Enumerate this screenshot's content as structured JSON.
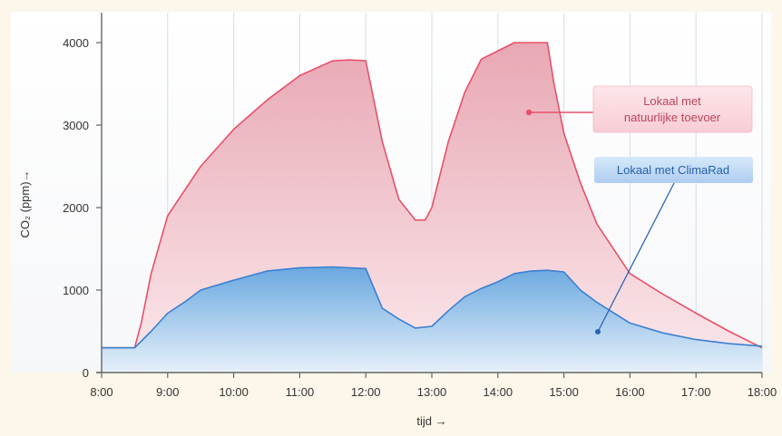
{
  "chart_data": {
    "type": "area",
    "title": "",
    "xlabel": "tijd →",
    "ylabel": "CO₂ (ppm)→",
    "xlim": [
      8,
      18
    ],
    "ylim": [
      0,
      4000
    ],
    "x_ticks": [
      {
        "value": 8,
        "label": "8:00"
      },
      {
        "value": 9,
        "label": "9:00"
      },
      {
        "value": 10,
        "label": "10:00"
      },
      {
        "value": 11,
        "label": "11:00"
      },
      {
        "value": 12,
        "label": "12:00"
      },
      {
        "value": 13,
        "label": "13:00"
      },
      {
        "value": 14,
        "label": "14:00"
      },
      {
        "value": 15,
        "label": "15:00"
      },
      {
        "value": 16,
        "label": "16:00"
      },
      {
        "value": 17,
        "label": "17:00"
      },
      {
        "value": 18,
        "label": "18:00"
      }
    ],
    "y_ticks": [
      {
        "value": 0,
        "label": "0"
      },
      {
        "value": 1000,
        "label": "1000"
      },
      {
        "value": 2000,
        "label": "2000"
      },
      {
        "value": 3000,
        "label": "3000"
      },
      {
        "value": 4000,
        "label": "4000"
      }
    ],
    "grid": "vertical",
    "series": [
      {
        "name": "Lokaal met natuurlijke toevoer",
        "color": "#e8506a",
        "fill_top": "#e8a8b4",
        "fill_bottom": "#fbe9ec",
        "x": [
          8,
          8.5,
          8.6,
          8.75,
          9,
          9.5,
          10,
          10.5,
          11,
          11.5,
          11.75,
          12,
          12.25,
          12.5,
          12.75,
          12.9,
          13,
          13.25,
          13.5,
          13.75,
          14,
          14.25,
          14.5,
          14.75,
          14.85,
          15,
          15.25,
          15.5,
          16,
          16.5,
          17,
          17.5,
          18
        ],
        "y": [
          300,
          300,
          600,
          1200,
          1900,
          2500,
          2950,
          3300,
          3600,
          3780,
          3790,
          3780,
          2800,
          2100,
          1850,
          1850,
          2000,
          2800,
          3400,
          3800,
          3900,
          4000,
          4000,
          4000,
          3500,
          2900,
          2300,
          1800,
          1200,
          950,
          720,
          500,
          300
        ]
      },
      {
        "name": "Lokaal met ClimaRad",
        "color": "#3a80d0",
        "fill_top": "#6aa8e0",
        "fill_bottom": "#e6f0fa",
        "x": [
          8,
          8.5,
          8.75,
          9,
          9.25,
          9.5,
          10,
          10.5,
          11,
          11.5,
          11.75,
          12,
          12.25,
          12.5,
          12.75,
          13,
          13.25,
          13.5,
          13.75,
          14,
          14.25,
          14.5,
          14.75,
          15,
          15.25,
          15.5,
          16,
          16.5,
          17,
          17.5,
          18
        ],
        "y": [
          300,
          300,
          500,
          720,
          850,
          1000,
          1120,
          1230,
          1270,
          1280,
          1270,
          1260,
          780,
          650,
          540,
          560,
          750,
          920,
          1020,
          1100,
          1200,
          1230,
          1240,
          1220,
          1000,
          850,
          600,
          480,
          400,
          350,
          320
        ]
      }
    ],
    "callouts": [
      {
        "series": 0,
        "lines": [
          "Lokaal met",
          "natuurlijke toevoer"
        ],
        "point": [
          14.4,
          3150
        ]
      },
      {
        "series": 1,
        "lines": [
          "Lokaal met ClimaRad"
        ],
        "point": [
          15.5,
          480
        ]
      }
    ]
  }
}
